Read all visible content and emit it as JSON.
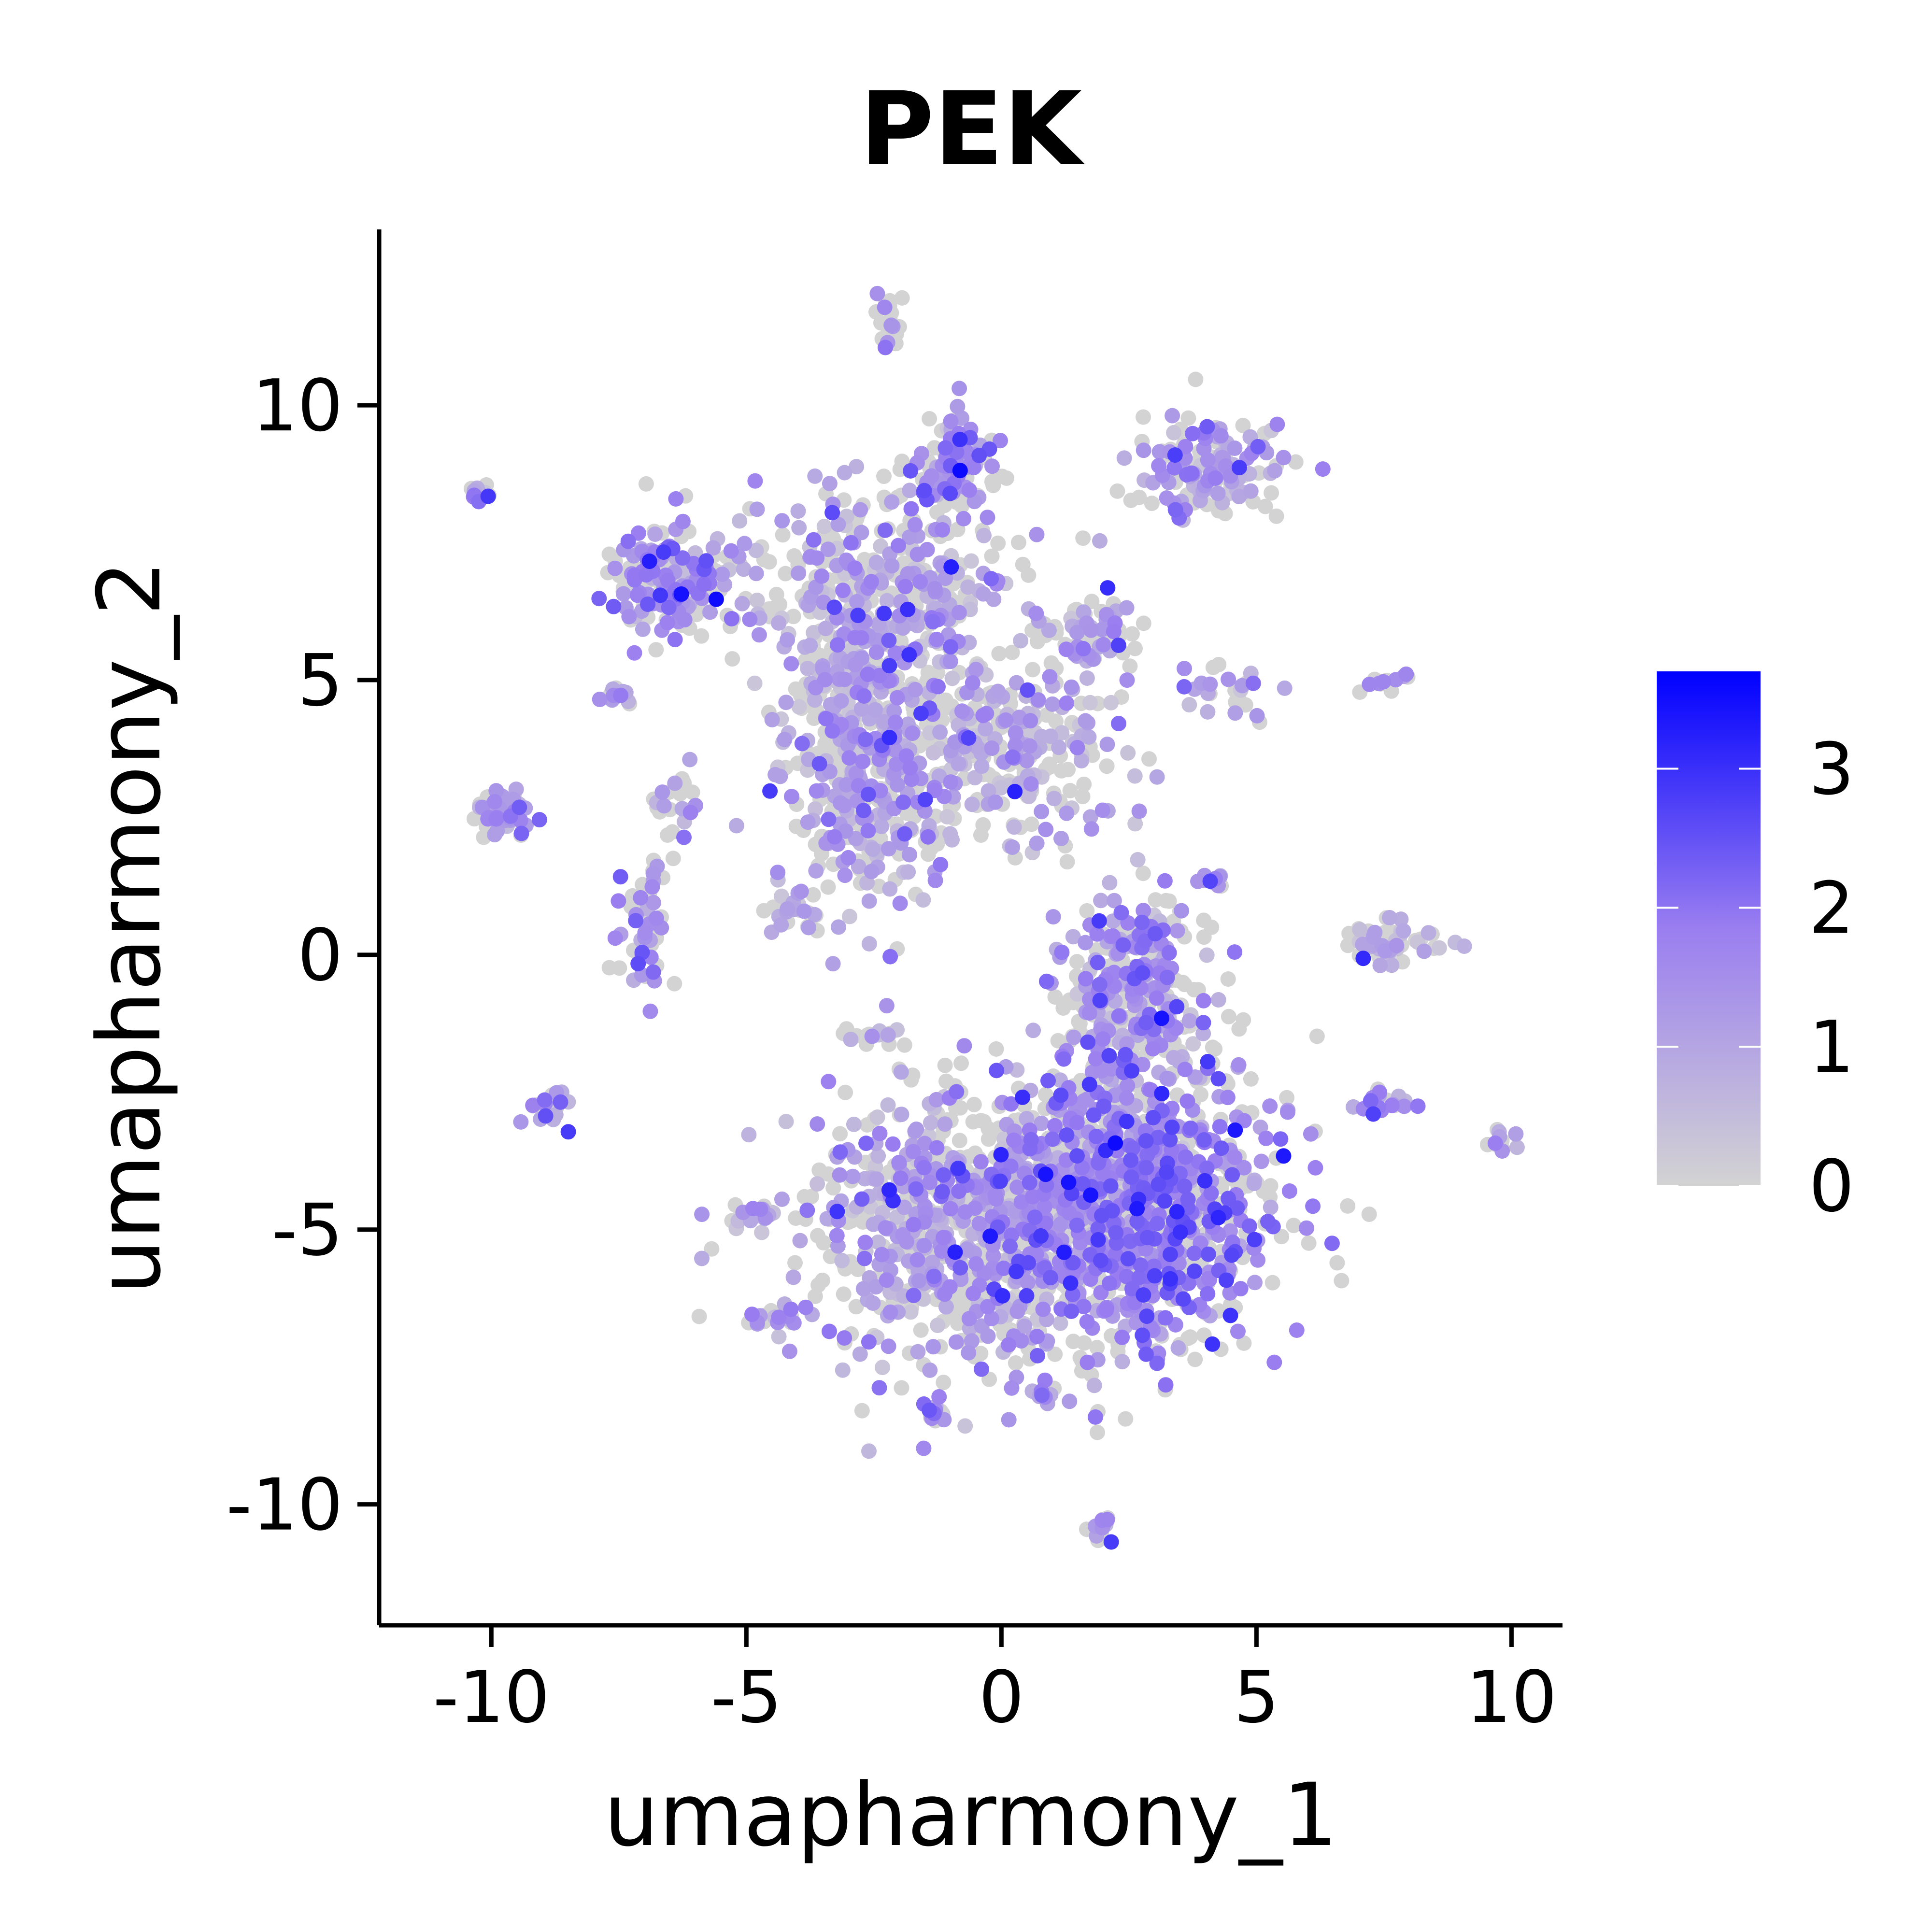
{
  "chart_data": {
    "type": "scatter",
    "title": "PEK",
    "xlabel": "umapharmony_1",
    "ylabel": "umapharmony_2",
    "xlim": [
      -12.2,
      11.0
    ],
    "ylim": [
      -12.2,
      13.2
    ],
    "x_ticks": [
      -10,
      -5,
      0,
      5,
      10
    ],
    "x_tick_labels": [
      "-10",
      "-5",
      "0",
      "5",
      "10"
    ],
    "y_ticks": [
      -10,
      -5,
      0,
      5,
      10
    ],
    "y_tick_labels": [
      "-10",
      "-5",
      "0",
      "5",
      "10"
    ],
    "grid": false,
    "legend": {
      "position": "right",
      "kind": "colorbar",
      "min": 0,
      "max": 3.7,
      "ticks": [
        0,
        1,
        2,
        3
      ],
      "tick_labels": [
        "0",
        "1",
        "2",
        "3"
      ],
      "low_color": "#d3d3d3",
      "high_color": "#0000ff"
    },
    "clusters": [
      {
        "x": 2.5,
        "y": -4.5,
        "sx": 1.4,
        "sy": 1.3,
        "w": 0.22,
        "expr": 1.7
      },
      {
        "x": -0.5,
        "y": -5.0,
        "sx": 1.6,
        "sy": 1.2,
        "w": 0.16,
        "expr": 1.1
      },
      {
        "x": 2.6,
        "y": -0.6,
        "sx": 0.7,
        "sy": 0.9,
        "w": 0.06,
        "expr": 1.4
      },
      {
        "x": -2.6,
        "y": 3.5,
        "sx": 0.9,
        "sy": 1.3,
        "w": 0.09,
        "expr": 1.1
      },
      {
        "x": -2.4,
        "y": 6.5,
        "sx": 1.2,
        "sy": 1.0,
        "w": 0.08,
        "expr": 1.0
      },
      {
        "x": -6.5,
        "y": 6.8,
        "sx": 0.6,
        "sy": 0.5,
        "w": 0.04,
        "expr": 1.5
      },
      {
        "x": 0.2,
        "y": 3.8,
        "sx": 1.0,
        "sy": 0.8,
        "w": 0.05,
        "expr": 0.9
      },
      {
        "x": -0.9,
        "y": 8.8,
        "sx": 0.5,
        "sy": 0.4,
        "w": 0.02,
        "expr": 1.5
      },
      {
        "x": 4.1,
        "y": 8.8,
        "sx": 0.7,
        "sy": 0.5,
        "w": 0.03,
        "expr": 1.2
      },
      {
        "x": -9.8,
        "y": 2.6,
        "sx": 0.3,
        "sy": 0.2,
        "w": 0.012,
        "expr": 1.3
      },
      {
        "x": 7.6,
        "y": 0.2,
        "sx": 0.5,
        "sy": 0.2,
        "w": 0.012,
        "expr": 0.8
      },
      {
        "x": -7.0,
        "y": 0.5,
        "sx": 0.3,
        "sy": 0.6,
        "w": 0.01,
        "expr": 1.4
      },
      {
        "x": 1.8,
        "y": 5.9,
        "sx": 0.6,
        "sy": 0.3,
        "w": 0.012,
        "expr": 1.1
      },
      {
        "x": -2.2,
        "y": 11.4,
        "sx": 0.12,
        "sy": 0.3,
        "w": 0.004,
        "expr": 1.5
      },
      {
        "x": 1.9,
        "y": -10.4,
        "sx": 0.12,
        "sy": 0.12,
        "w": 0.003,
        "expr": 1.4
      },
      {
        "x": -8.9,
        "y": -2.8,
        "sx": 0.2,
        "sy": 0.2,
        "w": 0.004,
        "expr": 1.4
      },
      {
        "x": 7.5,
        "y": -2.7,
        "sx": 0.3,
        "sy": 0.15,
        "w": 0.004,
        "expr": 1.5
      },
      {
        "x": -4.9,
        "y": -4.7,
        "sx": 0.3,
        "sy": 0.1,
        "w": 0.004,
        "expr": 1.2
      },
      {
        "x": -4.5,
        "y": -6.6,
        "sx": 0.3,
        "sy": 0.1,
        "w": 0.004,
        "expr": 1.3
      },
      {
        "x": 4.3,
        "y": 4.8,
        "sx": 0.5,
        "sy": 0.3,
        "w": 0.005,
        "expr": 1.2
      },
      {
        "x": -7.6,
        "y": 4.7,
        "sx": 0.2,
        "sy": 0.1,
        "w": 0.003,
        "expr": 1.2
      },
      {
        "x": -6.3,
        "y": 2.7,
        "sx": 0.2,
        "sy": 0.3,
        "w": 0.004,
        "expr": 1.3
      },
      {
        "x": 4.1,
        "y": 1.3,
        "sx": 0.12,
        "sy": 0.1,
        "w": 0.002,
        "expr": 1.5
      },
      {
        "x": 9.8,
        "y": -3.4,
        "sx": 0.12,
        "sy": 0.1,
        "w": 0.002,
        "expr": 1.3
      },
      {
        "x": -10.2,
        "y": 8.4,
        "sx": 0.12,
        "sy": 0.1,
        "w": 0.002,
        "expr": 1.3
      },
      {
        "x": 7.5,
        "y": 5.0,
        "sx": 0.25,
        "sy": 0.1,
        "w": 0.002,
        "expr": 1.2
      },
      {
        "x": -1.3,
        "y": -8.3,
        "sx": 0.12,
        "sy": 0.1,
        "w": 0.002,
        "expr": 1.5
      },
      {
        "x": 0.8,
        "y": -8.0,
        "sx": 0.15,
        "sy": 0.12,
        "w": 0.002,
        "expr": 1.3
      },
      {
        "x": -4.0,
        "y": 0.7,
        "sx": 0.4,
        "sy": 0.1,
        "w": 0.003,
        "expr": 1.2
      },
      {
        "x": -2.5,
        "y": -1.5,
        "sx": 0.4,
        "sy": 0.1,
        "w": 0.003,
        "expr": 1.1
      }
    ]
  }
}
